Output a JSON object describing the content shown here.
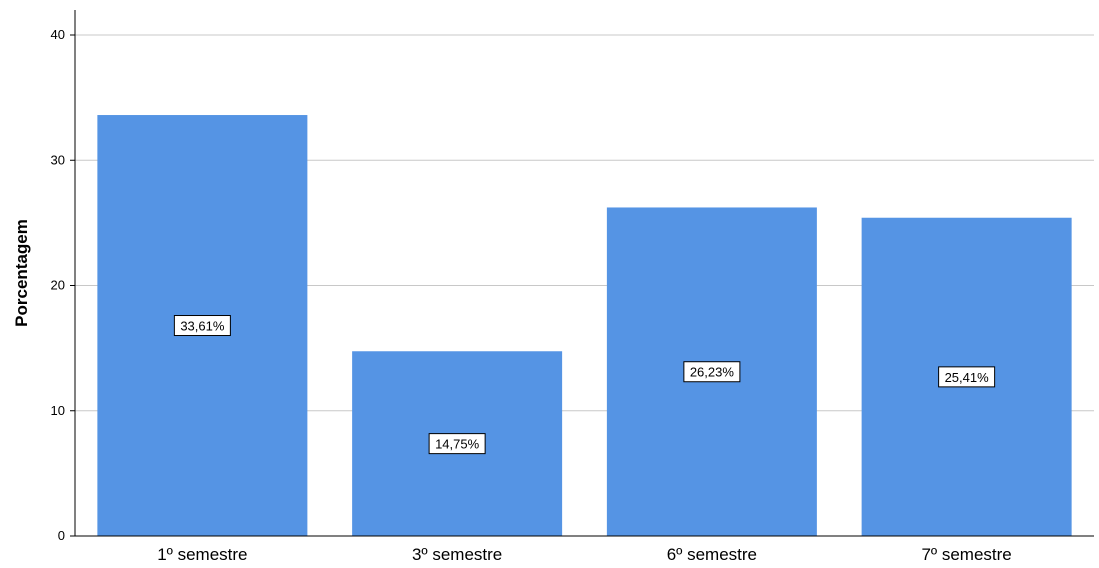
{
  "chart_data": {
    "type": "bar",
    "categories": [
      "1º semestre",
      "3º semestre",
      "6º semestre",
      "7º semestre"
    ],
    "values": [
      33.61,
      14.75,
      26.23,
      25.41
    ],
    "data_labels": [
      "33,61%",
      "14,75%",
      "26,23%",
      "25,41%"
    ],
    "title": "",
    "xlabel": "",
    "ylabel": "Porcentagem",
    "ylim": [
      0,
      40
    ],
    "yticks": [
      0,
      10,
      20,
      30,
      40
    ],
    "ytick_labels": [
      "0",
      "10",
      "20",
      "30",
      "40"
    ],
    "grid": true,
    "bar_color": "#5594e4",
    "grid_color": "#c8c8c8"
  }
}
